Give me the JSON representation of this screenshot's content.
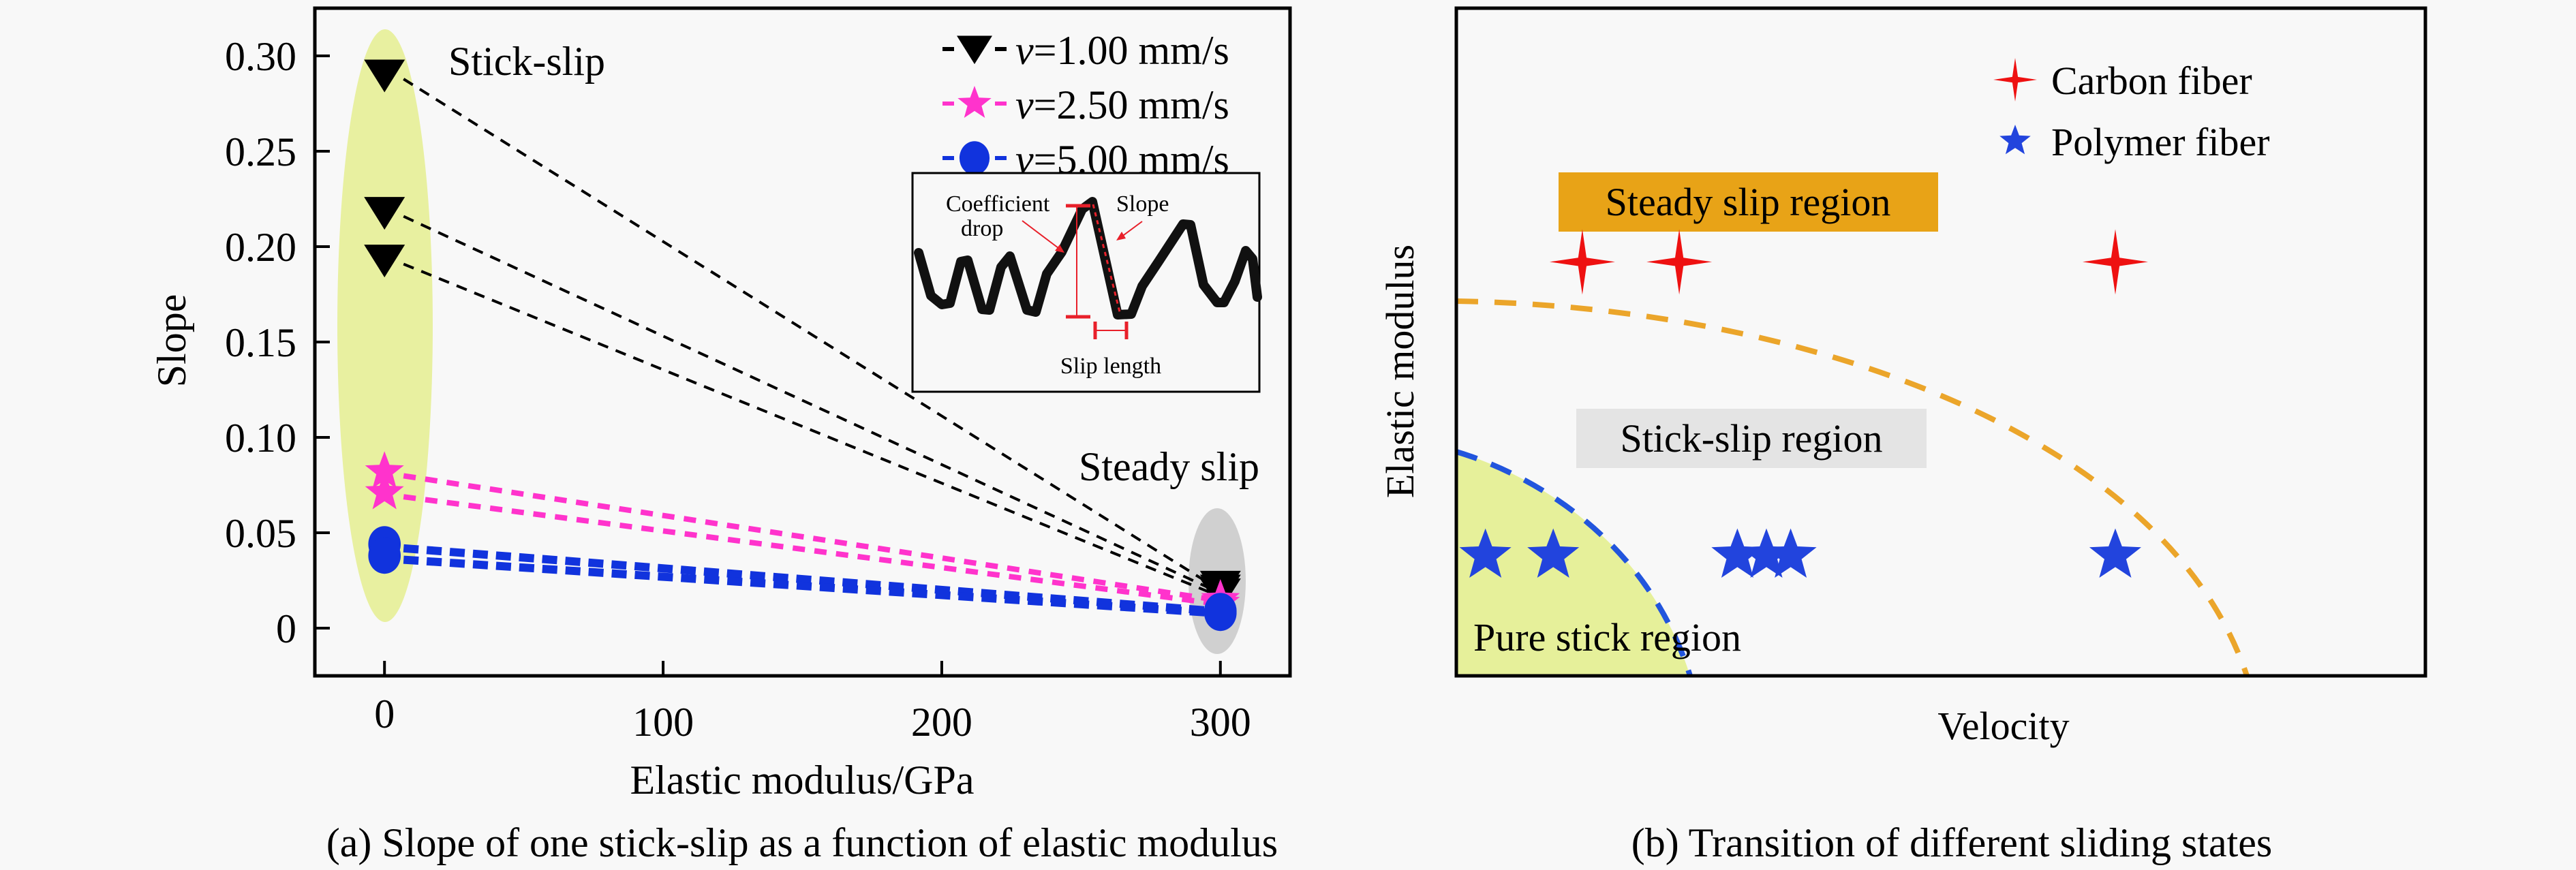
{
  "chart_data": [
    {
      "panel": "a",
      "type": "scatter",
      "caption": "(a) Slope of one stick-slip as a function of elastic modulus",
      "xlabel": "Elastic modulus/GPa",
      "ylabel": "Slope",
      "xlim": [
        -25,
        325
      ],
      "ylim": [
        -0.025,
        0.325
      ],
      "xticks": [
        0,
        100,
        200,
        300
      ],
      "xtick_labels": [
        "0",
        "100",
        "200",
        "300"
      ],
      "yticks": [
        0,
        0.05,
        0.1,
        0.15,
        0.2,
        0.25,
        0.3
      ],
      "ytick_labels": [
        "0",
        "0.05",
        "0.10",
        "0.15",
        "0.20",
        "0.25",
        "0.30"
      ],
      "grid": false,
      "legend_position": "top-right",
      "series": [
        {
          "name_prefix": "v",
          "name_suffix": "=1.00 mm/s",
          "color": "#000000",
          "marker": "triangle-down",
          "lines": [
            {
              "x": [
                0,
                300
              ],
              "y": [
                0.29,
                0.022
              ]
            },
            {
              "x": [
                0,
                300
              ],
              "y": [
                0.218,
                0.02
              ]
            },
            {
              "x": [
                0,
                300
              ],
              "y": [
                0.193,
                0.018
              ]
            }
          ]
        },
        {
          "name_prefix": "v",
          "name_suffix": "=2.50 mm/s",
          "color": "#ff33cc",
          "marker": "star",
          "lines": [
            {
              "x": [
                0,
                300
              ],
              "y": [
                0.082,
                0.015
              ]
            },
            {
              "x": [
                0,
                300
              ],
              "y": [
                0.071,
                0.013
              ]
            }
          ]
        },
        {
          "name_prefix": "v",
          "name_suffix": "=5.00 mm/s",
          "color": "#1133dd",
          "marker": "circle",
          "lines": [
            {
              "x": [
                0,
                300
              ],
              "y": [
                0.044,
                0.009
              ]
            },
            {
              "x": [
                0,
                300
              ],
              "y": [
                0.038,
                0.008
              ]
            }
          ]
        }
      ],
      "annotations": {
        "stick_slip": "Stick-slip",
        "steady_slip": "Steady slip"
      },
      "highlight_colors": {
        "stick_slip_ellipse": "#e8f0a0",
        "steady_slip_ellipse": "#d0d0d0"
      },
      "inset": {
        "labels": {
          "coefficient": "Coefficient",
          "drop": "drop",
          "slope": "Slope",
          "slip_length": "Slip length"
        },
        "annotation_color": "#e8202a"
      }
    },
    {
      "panel": "b",
      "type": "scatter",
      "caption": "(b) Transition of different sliding states",
      "xlabel": "Velocity",
      "ylabel": "Elastic modulus",
      "grid": false,
      "legend_position": "top-right",
      "legend": [
        {
          "label": "Carbon fiber",
          "marker": "four-point-star",
          "color": "#ee1111"
        },
        {
          "label": "Polymer fiber",
          "marker": "star",
          "color": "#2244dd"
        }
      ],
      "regions": [
        {
          "label": "Steady slip region",
          "color": "#e8a317"
        },
        {
          "label": "Stick-slip region",
          "color": "#e4e4e4"
        },
        {
          "label": "Pure stick region",
          "color": "#e6f09a"
        }
      ],
      "boundaries": [
        {
          "name": "steady-slip boundary",
          "color": "#eba52a"
        },
        {
          "name": "pure-stick boundary",
          "color": "#2255dd"
        }
      ],
      "series": [
        {
          "name": "Carbon fiber",
          "x_rel": [
            0.13,
            0.23,
            0.68
          ],
          "y_rel": [
            0.62,
            0.62,
            0.62
          ]
        },
        {
          "name": "Polymer fiber",
          "x_rel": [
            0.03,
            0.1,
            0.29,
            0.32,
            0.345,
            0.68
          ],
          "y_rel": [
            0.18,
            0.18,
            0.18,
            0.18,
            0.18,
            0.18
          ]
        }
      ]
    }
  ]
}
